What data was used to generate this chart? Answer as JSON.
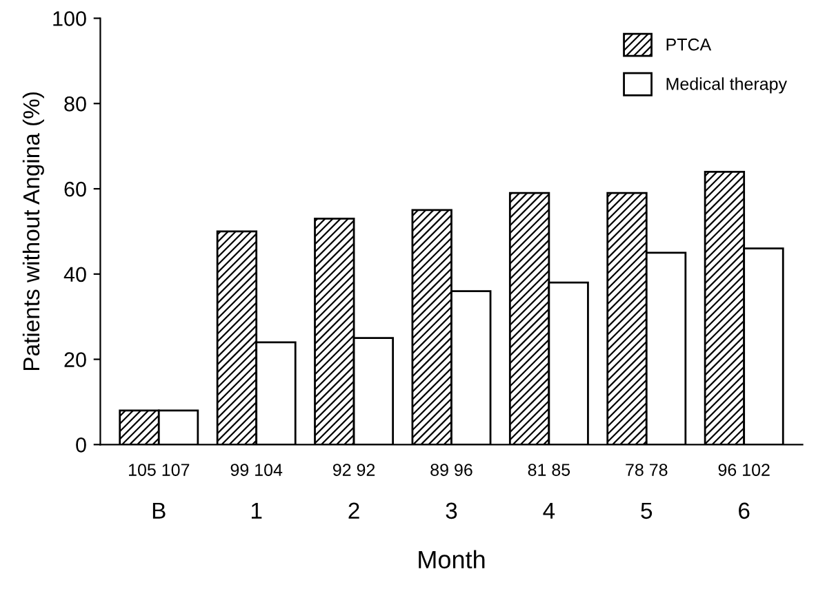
{
  "chart_data": {
    "type": "bar",
    "xlabel": "Month",
    "ylabel": "Patients without Angina (%)",
    "categories": [
      "B",
      "1",
      "2",
      "3",
      "4",
      "5",
      "6"
    ],
    "series": [
      {
        "name": "PTCA",
        "color": "#000000",
        "values": [
          8,
          50,
          53,
          55,
          59,
          59,
          64
        ]
      },
      {
        "name": "Medical therapy",
        "color": "#ffffff",
        "values": [
          8,
          24,
          25,
          36,
          38,
          45,
          46
        ]
      }
    ],
    "ylim": [
      0,
      100
    ],
    "yticks": [
      0,
      20,
      40,
      60,
      80,
      100
    ],
    "grid": false,
    "legend": "top right",
    "annotations": [
      "105 107",
      "99 104",
      "92 92",
      "89 96",
      "81 85",
      "78 78",
      "96 102"
    ]
  }
}
